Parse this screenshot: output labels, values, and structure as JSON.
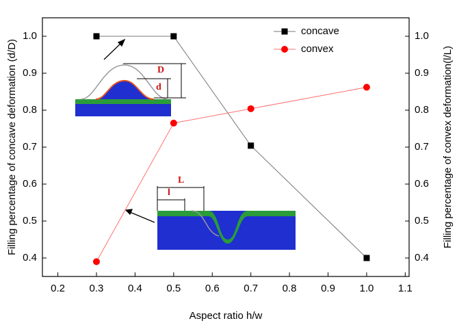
{
  "chart_data": {
    "type": "line",
    "x_label": "Aspect ratio h/w",
    "y_label": "Filling percentage of concave deformation (d/D)",
    "y2_label": "Filling percentage of convex deformation(l/L)",
    "x": [
      0.3,
      0.5,
      0.7,
      1.0
    ],
    "series": [
      {
        "name": "concave",
        "color": "#000000",
        "values": [
          1.0,
          1.0,
          0.704,
          0.4
        ]
      },
      {
        "name": "convex",
        "color": "#ff0000",
        "values": [
          0.39,
          0.765,
          0.804,
          0.862
        ],
        "axis": "y2"
      }
    ],
    "xlim": [
      0.16,
      1.11
    ],
    "xticks": [
      0.2,
      0.3,
      0.4,
      0.5,
      0.6,
      0.7,
      0.8,
      0.9,
      {
        "value": 1,
        "label": "1.0"
      },
      1.1
    ],
    "ylim": [
      0.35,
      1.05
    ],
    "yticks": [
      0.4,
      0.5,
      0.6,
      0.7,
      0.8,
      0.9,
      {
        "value": 1,
        "label": "1.0"
      }
    ],
    "y2lim": [
      0.35,
      1.05
    ],
    "y2ticks": [
      0.4,
      0.5,
      0.6,
      0.7,
      0.8,
      0.9,
      {
        "value": 1,
        "label": "1.0"
      }
    ],
    "legend": "top-right",
    "annotations": [
      "D",
      "d",
      "L",
      "l"
    ]
  }
}
